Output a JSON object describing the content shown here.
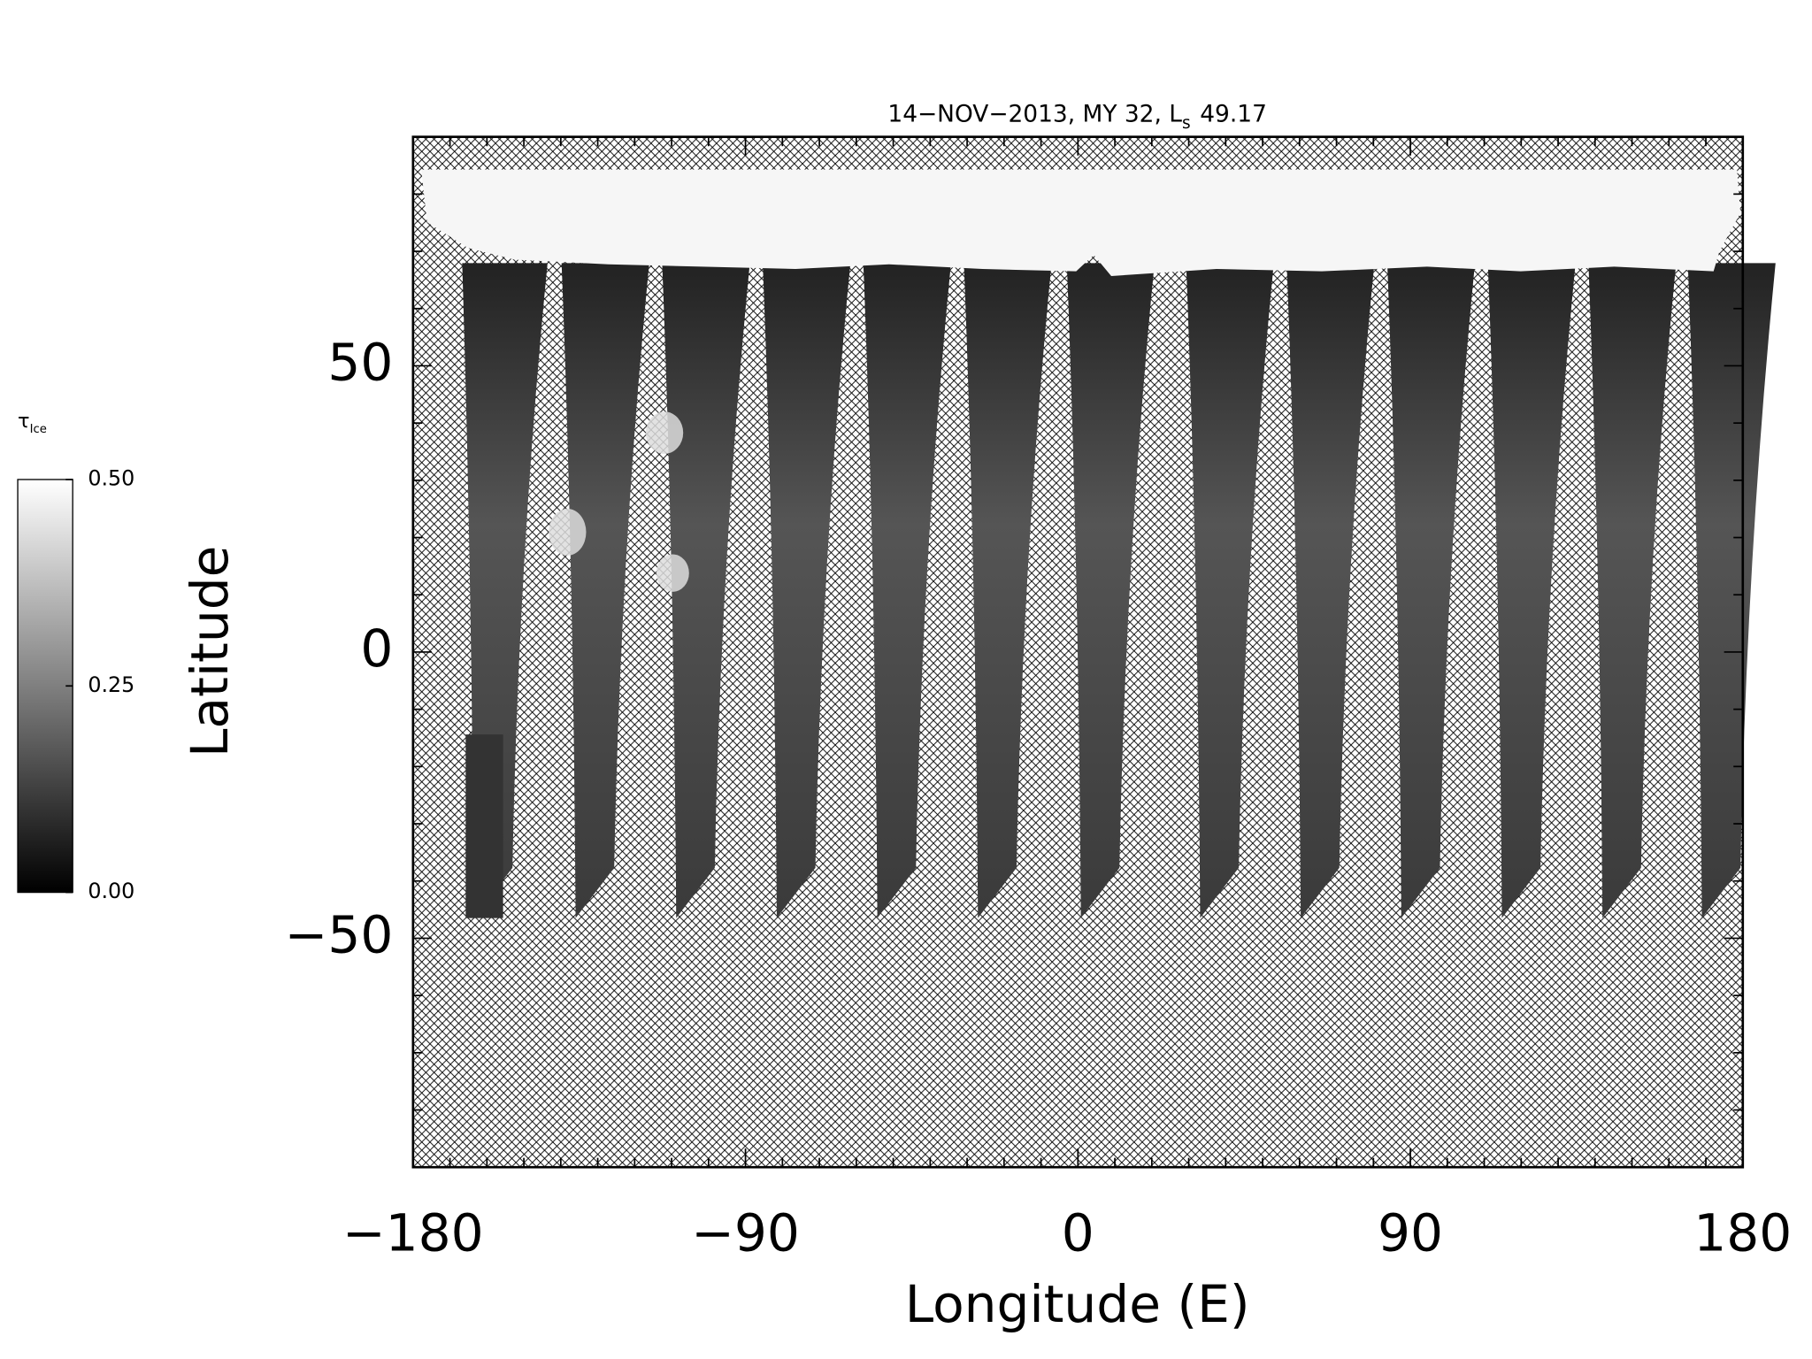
{
  "chart_data": {
    "type": "map",
    "title": "14−NOV−2013, MY 32,  L",
    "title_subscript": "s",
    "title_value": "49.17",
    "xlabel": "Longitude (E)",
    "ylabel": "Latitude",
    "xlim": [
      -180,
      180
    ],
    "ylim": [
      -90,
      90
    ],
    "xticks": [
      {
        "value": -180,
        "label": "−180"
      },
      {
        "value": -90,
        "label": "−90"
      },
      0,
      90,
      180
    ],
    "yticks": [
      {
        "value": -50,
        "label": "−50"
      },
      0,
      50
    ],
    "xminorticks": [
      -170,
      -160,
      -150,
      -140,
      -130,
      -120,
      -110,
      -100,
      -80,
      -70,
      -60,
      -50,
      -40,
      -30,
      -20,
      -10,
      10,
      20,
      30,
      40,
      50,
      60,
      70,
      80,
      100,
      110,
      120,
      130,
      140,
      150,
      160,
      170
    ],
    "yminorticks": [
      -80,
      -70,
      -60,
      -40,
      -30,
      -20,
      -10,
      10,
      20,
      30,
      40,
      60,
      70,
      80
    ],
    "colorbar": {
      "label": "τ",
      "label_subscript": "Ice",
      "lim": [
        0,
        0.5
      ],
      "ticks": [
        {
          "value": 0,
          "label": "0.00"
        },
        {
          "value": 0.25,
          "label": "0.25"
        },
        {
          "value": 0.5,
          "label": "0.50"
        }
      ],
      "colors": [
        "#000000",
        "#ffffff"
      ]
    }
  }
}
